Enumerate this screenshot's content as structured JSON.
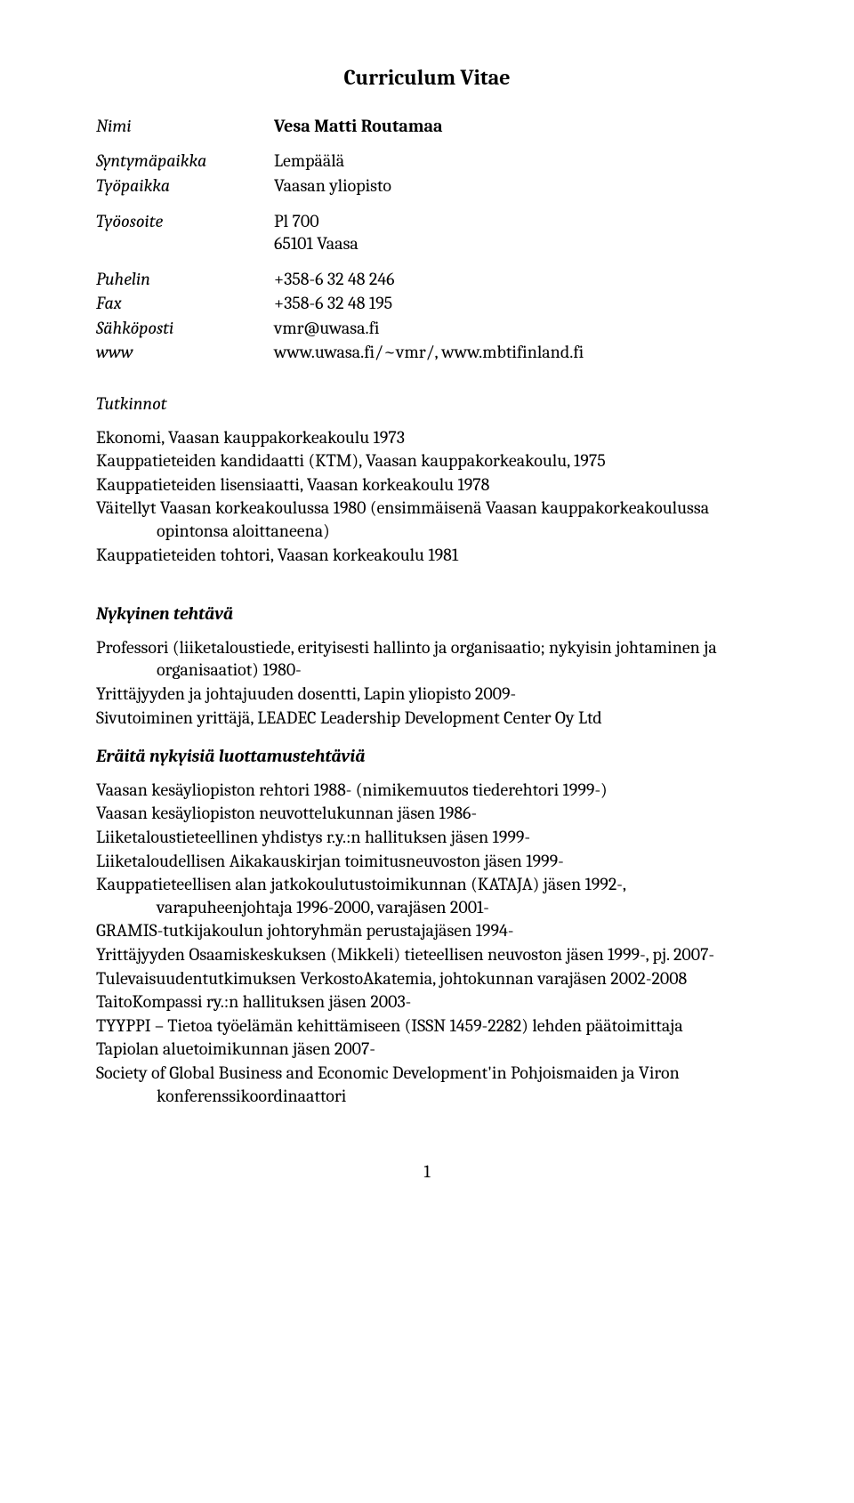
{
  "title": "Curriculum Vitae",
  "info": {
    "name_label": "Nimi",
    "name_value": "Vesa Matti Routamaa",
    "birthplace_label": "Syntymäpaikka",
    "birthplace_value": "Lempäälä",
    "workplace_label": "Työpaikka",
    "workplace_value": "Vaasan yliopisto",
    "workaddr_label": "Työosoite",
    "workaddr_value1": "Pl 700",
    "workaddr_value2": "65101 Vaasa",
    "phone_label": "Puhelin",
    "phone_value": "+358-6 32 48 246",
    "fax_label": "Fax",
    "fax_value": "+358-6 32 48 195",
    "email_label": "Sähköposti",
    "email_value": "vmr@uwasa.fi",
    "www_label": "www",
    "www_value": "www.uwasa.fi/~vmr/, www.mbtifinland.fi"
  },
  "degrees": {
    "heading": "Tutkinnot",
    "lines": [
      "Ekonomi, Vaasan kauppakorkeakoulu 1973",
      "Kauppatieteiden kandidaatti (KTM), Vaasan kauppakorkeakoulu,  1975",
      "Kauppatieteiden lisensiaatti, Vaasan korkeakoulu 1978",
      "Väitellyt Vaasan korkeakoulussa 1980 (ensimmäisenä Vaasan kauppakorkeakoulussa opintonsa aloittaneena)",
      "Kauppatieteiden tohtori, Vaasan korkeakoulu 1981"
    ]
  },
  "current": {
    "heading": "Nykyinen tehtävä",
    "lines": [
      "Professori (liiketaloustiede, erityisesti hallinto ja organisaatio; nykyisin johtaminen ja organisaatiot) 1980-",
      "Yrittäjyyden ja johtajuuden dosentti, Lapin yliopisto 2009-",
      "Sivutoiminen yrittäjä, LEADEC Leadership Development Center Oy Ltd"
    ]
  },
  "trust": {
    "heading": "Eräitä nykyisiä luottamustehtäviä",
    "lines": [
      "Vaasan kesäyliopiston rehtori 1988- (nimikemuutos tiederehtori 1999-)",
      "Vaasan kesäyliopiston neuvottelukunnan jäsen 1986-",
      "Liiketaloustieteellinen yhdistys r.y.:n hallituksen jäsen 1999-",
      "Liiketaloudellisen Aikakauskirjan toimitusneuvoston jäsen 1999-",
      "Kauppatieteellisen alan jatkokoulutustoimikunnan (KATAJA) jäsen 1992-, varapuheenjohtaja 1996-2000, varajäsen 2001-",
      "GRAMIS-tutkijakoulun johtoryhmän perustajajäsen 1994-",
      "Yrittäjyyden Osaamiskeskuksen (Mikkeli) tieteellisen neuvoston jäsen 1999-, pj. 2007-",
      "Tulevaisuudentutkimuksen VerkostoAkatemia,  johtokunnan varajäsen 2002-2008",
      "TaitoKompassi ry.:n hallituksen jäsen 2003-",
      "TYYPPI – Tietoa työelämän kehittämiseen (ISSN 1459-2282) lehden päätoimittaja",
      "Tapiolan aluetoimikunnan jäsen 2007-",
      "Society of Global Business and Economic Development'in Pohjoismaiden ja Viron konferenssikoordinaattori"
    ]
  },
  "page_number": "1"
}
